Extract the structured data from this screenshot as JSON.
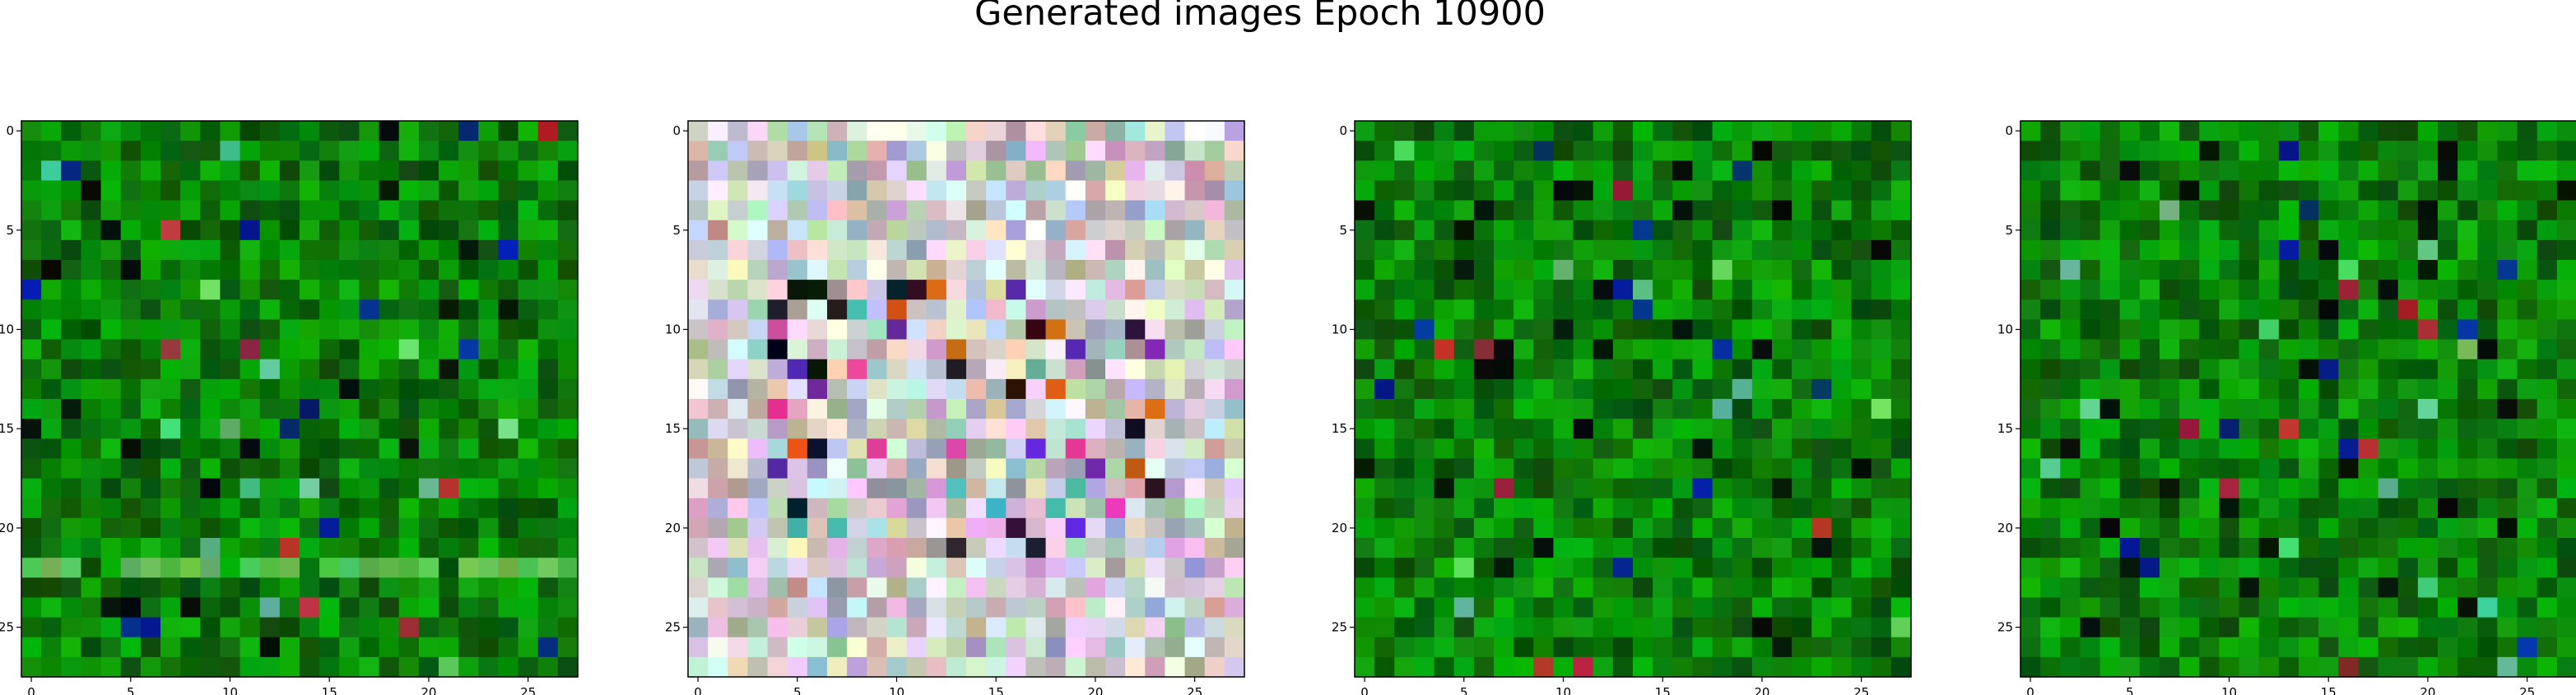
{
  "figure": {
    "title": "Generated images Epoch 10900"
  },
  "chart_data": [
    {
      "type": "heatmap",
      "image": "generated-sample-1",
      "palette": "green",
      "grid_size": 28,
      "xlim": [
        -0.5,
        27.5
      ],
      "ylim": [
        27.5,
        -0.5
      ],
      "x_ticks": [
        0,
        5,
        10,
        15,
        20,
        25
      ],
      "y_ticks": [
        0,
        5,
        10,
        15,
        20,
        25
      ],
      "x_tick_labels": [
        "0",
        "5",
        "10",
        "15",
        "20",
        "25"
      ],
      "y_tick_labels": [
        "0",
        "5",
        "10",
        "15",
        "20",
        "25"
      ]
    },
    {
      "type": "heatmap",
      "image": "generated-sample-2",
      "palette": "pastel-multicolor",
      "grid_size": 28,
      "xlim": [
        -0.5,
        27.5
      ],
      "ylim": [
        27.5,
        -0.5
      ],
      "x_ticks": [
        0,
        5,
        10,
        15,
        20,
        25
      ],
      "y_ticks": [
        0,
        5,
        10,
        15,
        20,
        25
      ],
      "x_tick_labels": [
        "0",
        "5",
        "10",
        "15",
        "20",
        "25"
      ],
      "y_tick_labels": [
        "0",
        "5",
        "10",
        "15",
        "20",
        "25"
      ]
    },
    {
      "type": "heatmap",
      "image": "generated-sample-3",
      "palette": "green",
      "grid_size": 28,
      "xlim": [
        -0.5,
        27.5
      ],
      "ylim": [
        27.5,
        -0.5
      ],
      "x_ticks": [
        0,
        5,
        10,
        15,
        20,
        25
      ],
      "y_ticks": [
        0,
        5,
        10,
        15,
        20,
        25
      ],
      "x_tick_labels": [
        "0",
        "5",
        "10",
        "15",
        "20",
        "25"
      ],
      "y_tick_labels": [
        "0",
        "5",
        "10",
        "15",
        "20",
        "25"
      ]
    },
    {
      "type": "heatmap",
      "image": "generated-sample-4",
      "palette": "green",
      "grid_size": 28,
      "xlim": [
        -0.5,
        27.5
      ],
      "ylim": [
        27.5,
        -0.5
      ],
      "x_ticks": [
        0,
        5,
        10,
        15,
        20,
        25
      ],
      "y_ticks": [
        0,
        5,
        10,
        15,
        20,
        25
      ],
      "x_tick_labels": [
        "0",
        "5",
        "10",
        "15",
        "20",
        "25"
      ],
      "y_tick_labels": [
        "0",
        "5",
        "10",
        "15",
        "20",
        "25"
      ]
    }
  ],
  "colors": {
    "background": "#ffffff",
    "axis": "#000000",
    "green_dark": "#0a3a06",
    "green_mid": "#0b7a12",
    "green_bright": "#18b424",
    "pastel_base": "#d8c8d8"
  }
}
